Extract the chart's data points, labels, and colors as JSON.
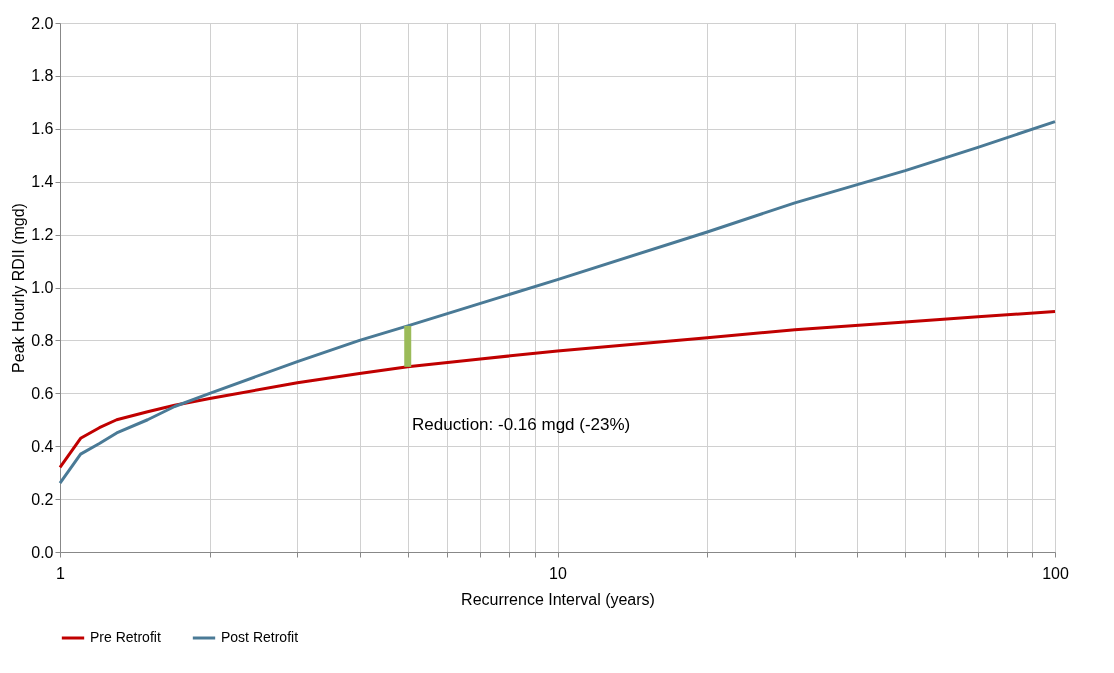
{
  "chart_data": {
    "type": "line",
    "xlabel": "Recurrence  Interval (years)",
    "ylabel": "Peak Hourly RDII (mgd)",
    "log": "x",
    "grid": true,
    "legend": "bottom",
    "marker": "none",
    "line_style": "solid",
    "xlim": [
      1,
      100
    ],
    "xticks": [
      1,
      {
        "value": 2,
        "label": null
      },
      {
        "value": 3,
        "label": null
      },
      {
        "value": 4,
        "label": null
      },
      {
        "value": 5,
        "label": null
      },
      {
        "value": 6,
        "label": null
      },
      {
        "value": 7,
        "label": null
      },
      {
        "value": 8,
        "label": null
      },
      {
        "value": 9,
        "label": null
      },
      10,
      {
        "value": 20,
        "label": null
      },
      {
        "value": 30,
        "label": null
      },
      {
        "value": 40,
        "label": null
      },
      {
        "value": 50,
        "label": null
      },
      {
        "value": 60,
        "label": null
      },
      {
        "value": 70,
        "label": null
      },
      {
        "value": 80,
        "label": null
      },
      {
        "value": 90,
        "label": null
      },
      100
    ],
    "ylim": [
      0,
      2.0
    ],
    "yticks": [
      {
        "value": 0,
        "label": "0.0"
      },
      {
        "value": 0.2,
        "label": "0.2"
      },
      {
        "value": 0.4,
        "label": "0.4"
      },
      {
        "value": 0.6,
        "label": "0.6"
      },
      {
        "value": 0.8,
        "label": "0.8"
      },
      {
        "value": 1.0,
        "label": "1.0"
      },
      {
        "value": 1.2,
        "label": "1.2"
      },
      {
        "value": 1.4,
        "label": "1.4"
      },
      {
        "value": 1.6,
        "label": "1.6"
      },
      {
        "value": 1.8,
        "label": "1.8"
      },
      {
        "value": 2.0,
        "label": "2.0"
      }
    ],
    "series": [
      {
        "name": "Pre Retrofit",
        "color": "#c00000",
        "x": [
          1,
          1.1,
          1.2,
          1.3,
          1.5,
          1.7,
          2,
          3,
          4,
          5,
          7,
          10,
          20,
          30,
          50,
          70,
          100
        ],
        "values": [
          0.32,
          0.43,
          0.47,
          0.5,
          0.53,
          0.555,
          0.58,
          0.64,
          0.675,
          0.7,
          0.73,
          0.76,
          0.81,
          0.84,
          0.8695,
          0.8892,
          0.909
        ]
      },
      {
        "name": "Post Retrofit",
        "color": "#4a7a96",
        "x": [
          1,
          1.1,
          1.2,
          1.3,
          1.5,
          1.7,
          2,
          3,
          4,
          5,
          7,
          10,
          20,
          30,
          50,
          70,
          100
        ],
        "values": [
          0.26,
          0.37,
          0.41,
          0.45,
          0.5,
          0.55,
          0.6,
          0.72,
          0.8,
          0.855,
          0.94,
          1.03,
          1.21,
          1.32,
          1.442,
          1.53,
          1.627
        ]
      },
      {
        "color": "#9bbb59",
        "x": [
          5,
          5
        ],
        "values": [
          0.7,
          0.855
        ]
      }
    ],
    "annotations": [
      "Reduction: -0.16 mgd (-23%)"
    ]
  }
}
